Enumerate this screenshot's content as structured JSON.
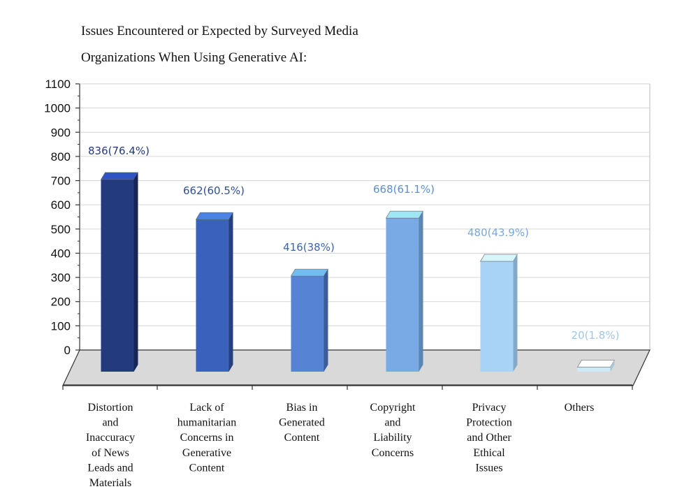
{
  "chart_data": {
    "type": "bar",
    "title_lines": [
      "Issues Encountered or Expected by Surveyed Media",
      "Organizations When Using Generative AI:"
    ],
    "categories": [
      [
        "Distortion",
        "and",
        "Inaccuracy",
        "of News",
        "Leads and",
        "Materials"
      ],
      [
        "Lack of",
        "humanitarian",
        "Concerns in",
        "Generative",
        "Content"
      ],
      [
        "Bias in",
        "Generated",
        "Content"
      ],
      [
        "Copyright",
        "and",
        "Liability",
        "Concerns"
      ],
      [
        "Privacy",
        "Protection",
        "and Other",
        "Ethical",
        "Issues"
      ],
      [
        "Others"
      ]
    ],
    "values": [
      836,
      662,
      416,
      668,
      480,
      20
    ],
    "data_labels": [
      "836(76.4%)",
      "662(60.5%)",
      "416(38%)",
      "668(61.1%)",
      "480(43.9%)",
      "20(1.8%)"
    ],
    "ylim": [
      0,
      1100
    ],
    "yticks": [
      0,
      100,
      200,
      300,
      400,
      500,
      600,
      700,
      800,
      900,
      1000,
      1100
    ],
    "grid": true,
    "bar_colors": [
      {
        "front": "#233a7e",
        "top": "#2f52c4",
        "side": "#152556",
        "label": "#233a7e"
      },
      {
        "front": "#3a62bc",
        "top": "#4c82e6",
        "side": "#25407e",
        "label": "#2e4f98"
      },
      {
        "front": "#5683d3",
        "top": "#72bdf0",
        "side": "#3a5d9a",
        "label": "#3f64ae"
      },
      {
        "front": "#79aae6",
        "top": "#9fe6f4",
        "side": "#5b85b4",
        "label": "#5d8ed0"
      },
      {
        "front": "#a8d2f6",
        "top": "#d6f6fc",
        "side": "#82aac8",
        "label": "#79a8da"
      },
      {
        "front": "#cceaf8",
        "top": "#ffffff",
        "side": "#a6c6d6",
        "label": "#9ec6e6"
      }
    ]
  }
}
